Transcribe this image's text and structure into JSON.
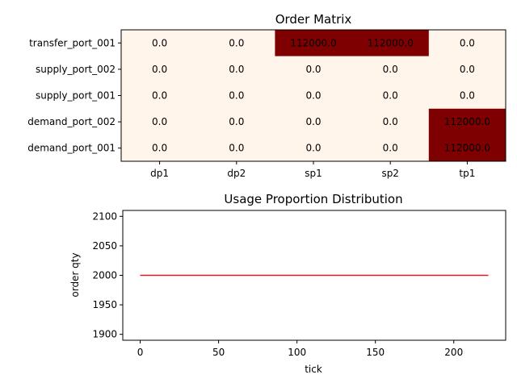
{
  "chart_data": [
    {
      "type": "heatmap",
      "title": "Order Matrix",
      "rows": [
        "transfer_port_001",
        "supply_port_002",
        "supply_port_001",
        "demand_port_002",
        "demand_port_001"
      ],
      "columns": [
        "dp1",
        "dp2",
        "sp1",
        "sp2",
        "tp1"
      ],
      "values": [
        [
          0.0,
          0.0,
          112000.0,
          112000.0,
          0.0
        ],
        [
          0.0,
          0.0,
          0.0,
          0.0,
          0.0
        ],
        [
          0.0,
          0.0,
          0.0,
          0.0,
          0.0
        ],
        [
          0.0,
          0.0,
          0.0,
          0.0,
          112000.0
        ],
        [
          0.0,
          0.0,
          0.0,
          0.0,
          112000.0
        ]
      ],
      "value_labels": [
        [
          "0.0",
          "0.0",
          "112000.0",
          "112000.0",
          "0.0"
        ],
        [
          "0.0",
          "0.0",
          "0.0",
          "0.0",
          "0.0"
        ],
        [
          "0.0",
          "0.0",
          "0.0",
          "0.0",
          "0.0"
        ],
        [
          "0.0",
          "0.0",
          "0.0",
          "0.0",
          "112000.0"
        ],
        [
          "0.0",
          "0.0",
          "0.0",
          "0.0",
          "112000.0"
        ]
      ],
      "colormap": {
        "low": "#fff5eb",
        "high": "#7f0000"
      }
    },
    {
      "type": "line",
      "title": "Usage Proportion Distribution",
      "xlabel": "tick",
      "ylabel": "order qty",
      "xlim": [
        -11.1,
        233.1
      ],
      "ylim": [
        1890,
        2110
      ],
      "xticks": [
        0,
        50,
        100,
        150,
        200
      ],
      "xtick_labels": [
        "0",
        "50",
        "100",
        "150",
        "200"
      ],
      "yticks": [
        1900,
        1950,
        2000,
        2050,
        2100
      ],
      "ytick_labels": [
        "1900",
        "1950",
        "2000",
        "2050",
        "2100"
      ],
      "grid": false,
      "series": [
        {
          "x": [
            0,
            222
          ],
          "y": [
            2000,
            2000
          ],
          "color": "#e41a1c"
        }
      ]
    }
  ]
}
